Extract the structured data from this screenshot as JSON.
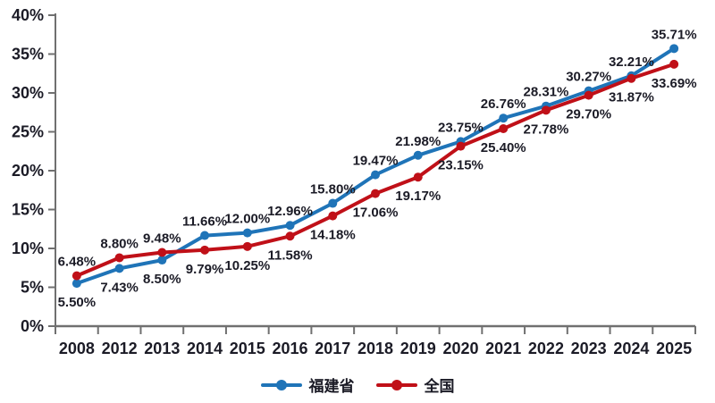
{
  "chart_data": {
    "type": "line",
    "title": "",
    "categories": [
      "2008",
      "2012",
      "2013",
      "2014",
      "2015",
      "2016",
      "2017",
      "2018",
      "2019",
      "2020",
      "2021",
      "2022",
      "2023",
      "2024",
      "2025"
    ],
    "series": [
      {
        "name": "福建省",
        "color": "#1F74B8",
        "values": [
          5.5,
          7.43,
          8.5,
          11.66,
          12.0,
          12.96,
          15.8,
          19.47,
          21.98,
          23.75,
          26.76,
          28.31,
          30.27,
          32.21,
          35.71
        ],
        "labels": [
          "5.50%",
          "7.43%",
          "8.50%",
          "11.66%",
          "12.00%",
          "12.96%",
          "15.80%",
          "19.47%",
          "21.98%",
          "23.75%",
          "26.76%",
          "28.31%",
          "30.27%",
          "32.21%",
          "35.71%"
        ]
      },
      {
        "name": "全国",
        "color": "#C01018",
        "values": [
          6.48,
          8.8,
          9.48,
          9.79,
          10.25,
          11.58,
          14.18,
          17.06,
          19.17,
          23.15,
          25.4,
          27.78,
          29.7,
          31.87,
          33.69
        ],
        "labels": [
          "6.48%",
          "8.80%",
          "9.48%",
          "9.79%",
          "10.25%",
          "11.58%",
          "14.18%",
          "17.06%",
          "19.17%",
          "23.15%",
          "25.40%",
          "27.78%",
          "29.70%",
          "31.87%",
          "33.69%"
        ]
      }
    ],
    "xlabel": "",
    "ylabel": "",
    "ylim": [
      0,
      40
    ],
    "ytick_values": [
      0,
      5,
      10,
      15,
      20,
      25,
      30,
      35,
      40
    ],
    "ytick_labels": [
      "0%",
      "5%",
      "10%",
      "15%",
      "20%",
      "25%",
      "30%",
      "35%",
      "40%"
    ],
    "grid": false,
    "legend_position": "bottom",
    "colors": {
      "text": "#1B1B26",
      "axis": "#707070",
      "background": "#FFFFFF"
    }
  }
}
